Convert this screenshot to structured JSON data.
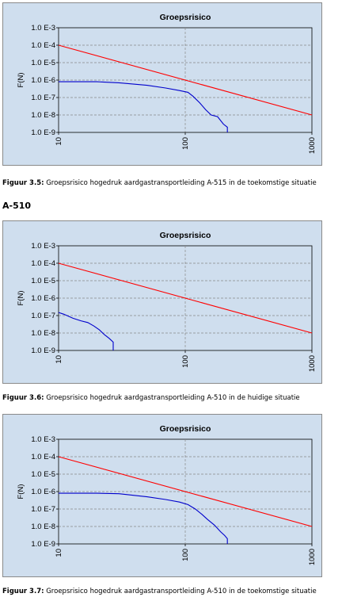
{
  "charts": [
    {
      "caption_label": "Figuur 3.5:",
      "caption_text": " Groepsrisico hogedruk aardgastransportleiding A-515 in de toekomstige situatie"
    },
    {
      "caption_label": "Figuur 3.6:",
      "caption_text": " Groepsrisico hogedruk aardgastransportleiding A-510 in de huidige situatie"
    },
    {
      "caption_label": "Figuur 3.7:",
      "caption_text": " Groepsrisico hogedruk aardgastransportleiding A-510 in de toekomstige situatie"
    }
  ],
  "section_heading": "A-510",
  "colors": {
    "panel_bg": "#cfdeee",
    "norm_line": "#ff0000",
    "risk_line": "#0000cc",
    "grid": "#888888"
  },
  "chart_data": [
    {
      "type": "line",
      "title": "Groepsrisico",
      "ylabel": "F(N)",
      "xlabel": "",
      "x_scale": "log",
      "y_scale": "log",
      "xlim": [
        10,
        1000
      ],
      "ylim": [
        1e-09,
        0.001
      ],
      "x_tick_labels": [
        "10",
        "100",
        "1000"
      ],
      "y_tick_labels": [
        "1.0 E-3",
        "1.0 E-4",
        "1.0 E-5",
        "1.0 E-6",
        "1.0 E-7",
        "1.0 E-8",
        "1.0 E-9"
      ],
      "grid": true,
      "series": [
        {
          "color": "#ff0000",
          "points": [
            [
              10,
              0.0001
            ],
            [
              1000,
              1e-08
            ]
          ]
        },
        {
          "color": "#0000cc",
          "points": [
            [
              10,
              8e-07
            ],
            [
              20,
              8e-07
            ],
            [
              30,
              7e-07
            ],
            [
              50,
              5e-07
            ],
            [
              70,
              3.5e-07
            ],
            [
              90,
              2.5e-07
            ],
            [
              105,
              2e-07
            ],
            [
              115,
              1.2e-07
            ],
            [
              130,
              5e-08
            ],
            [
              145,
              2e-08
            ],
            [
              160,
              1e-08
            ],
            [
              180,
              8e-09
            ],
            [
              200,
              3e-09
            ],
            [
              215,
              2e-09
            ],
            [
              215,
              1e-09
            ]
          ]
        }
      ]
    },
    {
      "type": "line",
      "title": "Groepsrisico",
      "ylabel": "F(N)",
      "xlabel": "",
      "x_scale": "log",
      "y_scale": "log",
      "xlim": [
        10,
        1000
      ],
      "ylim": [
        1e-09,
        0.001
      ],
      "x_tick_labels": [
        "10",
        "100",
        "1000"
      ],
      "y_tick_labels": [
        "1.0 E-3",
        "1.0 E-4",
        "1.0 E-5",
        "1.0 E-6",
        "1.0 E-7",
        "1.0 E-8",
        "1.0 E-9"
      ],
      "grid": true,
      "series": [
        {
          "color": "#ff0000",
          "points": [
            [
              10,
              0.0001
            ],
            [
              1000,
              1e-08
            ]
          ]
        },
        {
          "color": "#0000cc",
          "points": [
            [
              10,
              1.5e-07
            ],
            [
              11,
              1.2e-07
            ],
            [
              13,
              7e-08
            ],
            [
              15,
              5e-08
            ],
            [
              17,
              4e-08
            ],
            [
              19,
              2.5e-08
            ],
            [
              21,
              1.5e-08
            ],
            [
              23,
              8e-09
            ],
            [
              25,
              5e-09
            ],
            [
              27,
              3e-09
            ],
            [
              27,
              1e-09
            ]
          ]
        }
      ]
    },
    {
      "type": "line",
      "title": "Groepsrisico",
      "ylabel": "F(N)",
      "xlabel": "",
      "x_scale": "log",
      "y_scale": "log",
      "xlim": [
        10,
        1000
      ],
      "ylim": [
        1e-09,
        0.001
      ],
      "x_tick_labels": [
        "10",
        "100",
        "1000"
      ],
      "y_tick_labels": [
        "1.0 E-3",
        "1.0 E-4",
        "1.0 E-5",
        "1.0 E-6",
        "1.0 E-7",
        "1.0 E-8",
        "1.0 E-9"
      ],
      "grid": true,
      "series": [
        {
          "color": "#ff0000",
          "points": [
            [
              10,
              0.0001
            ],
            [
              1000,
              1e-08
            ]
          ]
        },
        {
          "color": "#0000cc",
          "points": [
            [
              10,
              8e-07
            ],
            [
              20,
              8e-07
            ],
            [
              30,
              7.5e-07
            ],
            [
              50,
              5e-07
            ],
            [
              70,
              3.5e-07
            ],
            [
              90,
              2.5e-07
            ],
            [
              105,
              1.8e-07
            ],
            [
              120,
              1e-07
            ],
            [
              135,
              5e-08
            ],
            [
              150,
              2.5e-08
            ],
            [
              170,
              1.2e-08
            ],
            [
              190,
              5e-09
            ],
            [
              205,
              3e-09
            ],
            [
              215,
              2e-09
            ],
            [
              215,
              1e-09
            ]
          ]
        }
      ]
    }
  ]
}
